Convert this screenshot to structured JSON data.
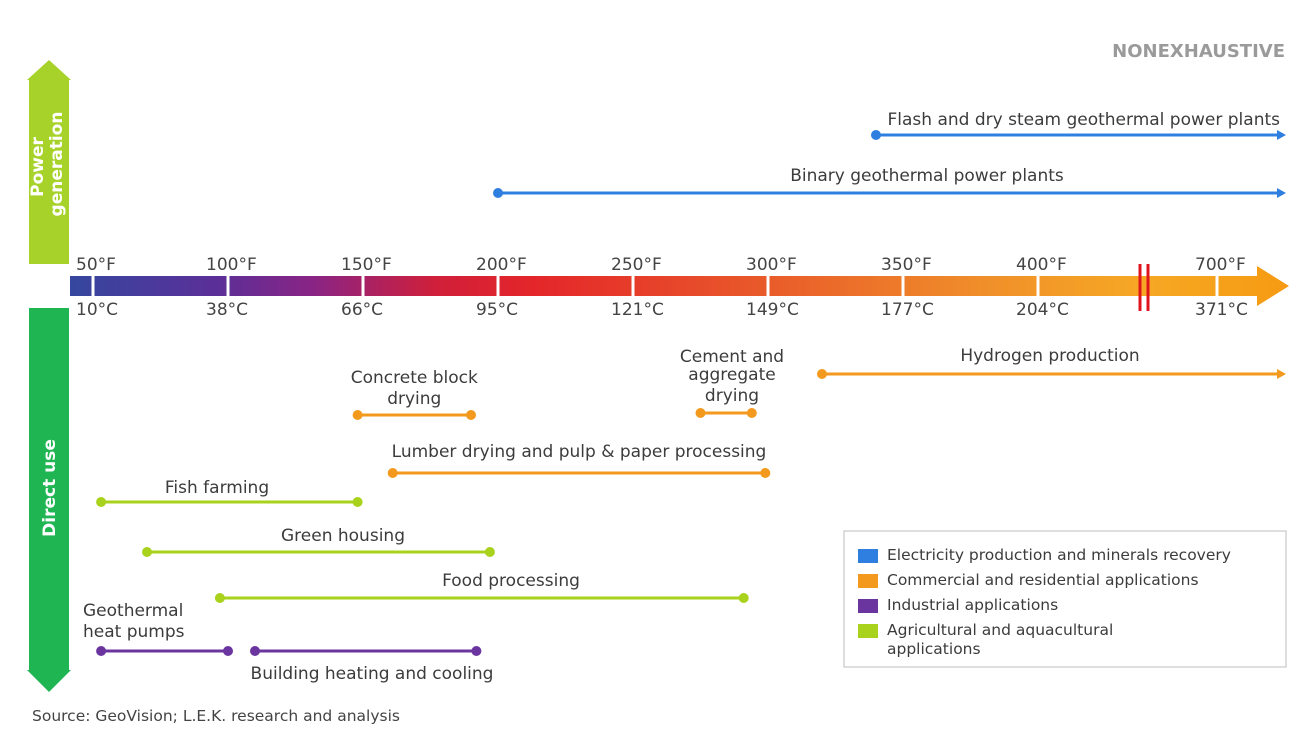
{
  "tag": "NONEXHAUSTIVE",
  "axis_labels": {
    "power": [
      "Power",
      "generation"
    ],
    "direct": "Direct use"
  },
  "colors": {
    "electricity": "#2f7fe0",
    "commercial": "#f39a1e",
    "industrial": "#6b35a0",
    "agricultural": "#a8d21c",
    "power_arrow": "#a6d22a",
    "direct_arrow": "#1fb553",
    "break_mark": "#e0161e"
  },
  "scale": {
    "ticks": [
      {
        "f": "50°F",
        "c": "10°C",
        "value_f": 50
      },
      {
        "f": "100°F",
        "c": "38°C",
        "value_f": 100
      },
      {
        "f": "150°F",
        "c": "66°C",
        "value_f": 150
      },
      {
        "f": "200°F",
        "c": "95°C",
        "value_f": 200
      },
      {
        "f": "250°F",
        "c": "121°C",
        "value_f": 250
      },
      {
        "f": "300°F",
        "c": "149°C",
        "value_f": 300
      },
      {
        "f": "350°F",
        "c": "177°C",
        "value_f": 350
      },
      {
        "f": "400°F",
        "c": "204°C",
        "value_f": 400
      },
      {
        "f": "700°F",
        "c": "371°C",
        "value_f": 700
      }
    ],
    "axis_break": true
  },
  "applications": [
    {
      "lines": [
        "Flash and dry steam geothermal power plants"
      ],
      "category": "electricity",
      "from_f": 340,
      "to_f": null,
      "open_ended": true
    },
    {
      "lines": [
        "Binary geothermal power plants"
      ],
      "category": "electricity",
      "from_f": 200,
      "to_f": null,
      "open_ended": true
    },
    {
      "lines": [
        "Hydrogen production"
      ],
      "category": "commercial",
      "from_f": 320,
      "to_f": null,
      "open_ended": true
    },
    {
      "lines": [
        "Concrete block",
        "drying"
      ],
      "category": "commercial",
      "from_f": 148,
      "to_f": 190
    },
    {
      "lines": [
        "Cement and",
        "aggregate",
        "drying"
      ],
      "category": "commercial",
      "from_f": 275,
      "to_f": 294
    },
    {
      "lines": [
        "Lumber drying and pulp & paper processing"
      ],
      "category": "commercial",
      "from_f": 161,
      "to_f": 299
    },
    {
      "lines": [
        "Fish farming"
      ],
      "category": "agricultural",
      "from_f": 53,
      "to_f": 148
    },
    {
      "lines": [
        "Green housing"
      ],
      "category": "agricultural",
      "from_f": 70,
      "to_f": 197
    },
    {
      "lines": [
        "Food processing"
      ],
      "category": "agricultural",
      "from_f": 97,
      "to_f": 291
    },
    {
      "lines": [
        "Geothermal",
        "heat pumps"
      ],
      "category": "industrial",
      "from_f": 53,
      "to_f": 100
    },
    {
      "lines": [
        "Building heating and cooling"
      ],
      "category": "industrial",
      "from_f": 110,
      "to_f": 192
    }
  ],
  "legend": [
    {
      "key": "electricity",
      "lines": [
        "Electricity production and minerals recovery"
      ]
    },
    {
      "key": "commercial",
      "lines": [
        "Commercial and residential applications"
      ]
    },
    {
      "key": "industrial",
      "lines": [
        "Industrial applications"
      ]
    },
    {
      "key": "agricultural",
      "lines": [
        "Agricultural and aquacultural",
        "applications"
      ]
    }
  ],
  "source": "Source: GeoVision; L.E.K. research and analysis"
}
